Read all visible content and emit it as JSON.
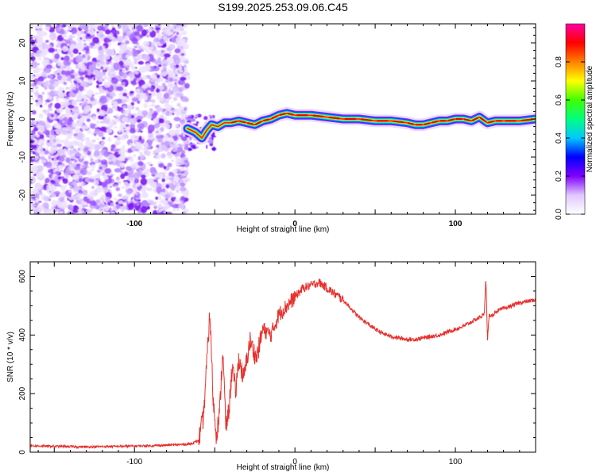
{
  "chart_data": [
    {
      "type": "heatmap",
      "title": "S199.2025.253.09.06.C45",
      "xlabel": "Height of straight line (km)",
      "ylabel": "Frequency (Hz)",
      "xlim": [
        -165,
        150
      ],
      "ylim": [
        -25,
        25
      ],
      "xticks": [
        -100,
        0,
        100
      ],
      "xtick_labels": [
        "-100",
        "0",
        "100"
      ],
      "yticks": [
        -20,
        -10,
        0,
        10,
        20
      ],
      "ytick_labels": [
        "-20",
        "-10",
        "0",
        "10",
        "20"
      ],
      "colorbar": {
        "label": "Normalized spectral amplitude",
        "range": [
          0,
          1
        ],
        "ticks": [
          0.0,
          0.2,
          0.4,
          0.6,
          0.8
        ],
        "tick_labels": [
          "0.0",
          "0.2",
          "0.4",
          "0.6",
          "0.8"
        ],
        "colors": [
          "#ffffff",
          "#e0c8ff",
          "#8000ff",
          "#0000ff",
          "#00c8ff",
          "#00ff80",
          "#40ff00",
          "#ffff00",
          "#ff8000",
          "#ff0000",
          "#ff00a0"
        ]
      },
      "noise_region": {
        "x_range": [
          -165,
          -67
        ],
        "y_range": [
          -25,
          25
        ]
      },
      "ridge": {
        "x": [
          -67,
          -62,
          -58,
          -55,
          -52,
          -48,
          -44,
          -40,
          -35,
          -30,
          -25,
          -20,
          -15,
          -10,
          -5,
          0,
          10,
          20,
          30,
          40,
          50,
          60,
          70,
          75,
          80,
          85,
          90,
          95,
          100,
          105,
          110,
          115,
          120,
          125,
          130,
          140,
          150
        ],
        "y": [
          -2.5,
          -3.5,
          -5,
          -3,
          -1.5,
          -2,
          -1,
          -1,
          -0.5,
          -1,
          -1.5,
          -0.5,
          0,
          1,
          1.5,
          1,
          1,
          0.5,
          0,
          0,
          -0.5,
          -0.5,
          -1,
          -1.5,
          -1.5,
          -1,
          -0.5,
          -0.5,
          0,
          0,
          -0.5,
          0.5,
          -1,
          -0.5,
          -0.5,
          -0.5,
          0
        ]
      }
    },
    {
      "type": "line",
      "xlabel": "Height of straight line (km)",
      "ylabel": "SNR (10 * v/v)",
      "xlim": [
        -165,
        150
      ],
      "ylim": [
        0,
        650
      ],
      "xticks": [
        -100,
        0,
        100
      ],
      "xtick_labels": [
        "-100",
        "0",
        "100"
      ],
      "yticks": [
        0,
        200,
        400,
        600
      ],
      "ytick_labels": [
        "0",
        "200",
        "400",
        "600"
      ],
      "series": [
        {
          "name": "SNR",
          "color": "#e8302c",
          "x": [
            -165,
            -150,
            -130,
            -110,
            -90,
            -75,
            -65,
            -60,
            -57,
            -55,
            -53,
            -51,
            -49,
            -47,
            -45,
            -43,
            -41,
            -39,
            -37,
            -35,
            -32,
            -28,
            -24,
            -20,
            -15,
            -10,
            -5,
            0,
            5,
            10,
            15,
            20,
            25,
            30,
            35,
            40,
            45,
            50,
            55,
            60,
            65,
            70,
            75,
            80,
            85,
            90,
            95,
            100,
            105,
            110,
            115,
            118,
            119,
            120,
            121,
            122,
            125,
            130,
            135,
            140,
            145,
            150
          ],
          "y": [
            22,
            20,
            18,
            20,
            22,
            25,
            28,
            40,
            120,
            300,
            480,
            180,
            60,
            130,
            350,
            80,
            150,
            300,
            200,
            320,
            250,
            380,
            320,
            420,
            400,
            470,
            500,
            530,
            560,
            570,
            580,
            560,
            540,
            520,
            490,
            460,
            440,
            420,
            405,
            395,
            390,
            385,
            385,
            390,
            395,
            400,
            410,
            420,
            430,
            445,
            460,
            470,
            600,
            380,
            470,
            460,
            480,
            490,
            500,
            510,
            515,
            520
          ]
        }
      ]
    }
  ]
}
